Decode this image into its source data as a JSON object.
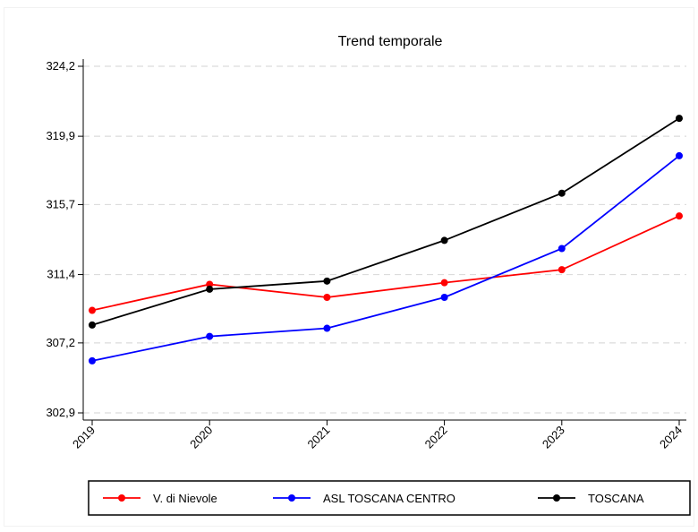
{
  "chart_data": {
    "type": "line",
    "title": "Trend temporale",
    "xlabel": "",
    "ylabel": "",
    "categories": [
      "2019",
      "2020",
      "2021",
      "2022",
      "2023",
      "2024"
    ],
    "ylim": [
      302.9,
      324.2
    ],
    "yticks": [
      "302,9",
      "307,2",
      "311,4",
      "315,7",
      "319,9",
      "324,2"
    ],
    "ytick_values": [
      302.9,
      307.2,
      311.4,
      315.7,
      319.9,
      324.2
    ],
    "grid": "horizontal dashed",
    "legend_position": "bottom",
    "series": [
      {
        "name": "V. di Nievole",
        "color": "#ff0000",
        "values": [
          309.2,
          310.8,
          310.0,
          310.9,
          311.7,
          315.0
        ]
      },
      {
        "name": "ASL TOSCANA CENTRO",
        "color": "#0000ff",
        "values": [
          306.1,
          307.6,
          308.1,
          310.0,
          313.0,
          318.7
        ]
      },
      {
        "name": "TOSCANA",
        "color": "#000000",
        "values": [
          308.3,
          310.5,
          311.0,
          313.5,
          316.4,
          321.0
        ]
      }
    ]
  }
}
